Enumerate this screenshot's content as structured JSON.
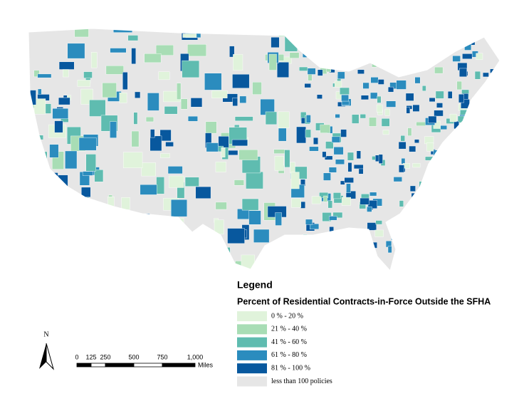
{
  "legend": {
    "heading": "Legend",
    "title": "Percent of Residential Contracts-in-Force Outside the SFHA",
    "items": [
      {
        "label": "0 % - 20 %",
        "color": "#e0f3db"
      },
      {
        "label": "21 % - 40 %",
        "color": "#a8ddb5"
      },
      {
        "label": "41 % - 60 %",
        "color": "#5fbcb0"
      },
      {
        "label": "61 % - 80 %",
        "color": "#2b8cbe"
      },
      {
        "label": "81 % - 100 %",
        "color": "#08589e"
      },
      {
        "label": "less than 100 policies",
        "color": "#e6e6e6"
      }
    ]
  },
  "north_arrow": {
    "label": "N"
  },
  "scale_bar": {
    "labels": [
      "0",
      "125",
      "250",
      "500",
      "750",
      "1,000"
    ],
    "unit": "Miles"
  }
}
